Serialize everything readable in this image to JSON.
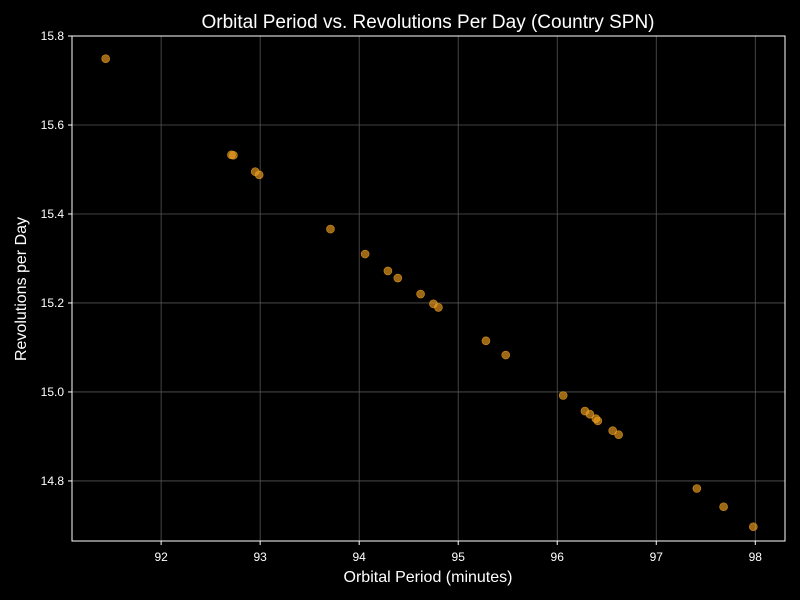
{
  "chart_data": {
    "type": "scatter",
    "title": "Orbital Period vs. Revolutions Per Day (Country SPN)",
    "xlabel": "Orbital Period (minutes)",
    "ylabel": "Revolutions per Day",
    "xlim": [
      91.1,
      98.3
    ],
    "ylim": [
      14.665,
      15.8
    ],
    "xticks": [
      92,
      93,
      94,
      95,
      96,
      97,
      98
    ],
    "yticks": [
      14.8,
      15.0,
      15.2,
      15.4,
      15.6,
      15.8
    ],
    "grid": true,
    "legend": "none",
    "point_color": "#f0a020",
    "points": [
      {
        "x": 91.44,
        "y": 15.749
      },
      {
        "x": 92.71,
        "y": 15.533
      },
      {
        "x": 92.73,
        "y": 15.532
      },
      {
        "x": 92.95,
        "y": 15.495
      },
      {
        "x": 92.99,
        "y": 15.488
      },
      {
        "x": 93.71,
        "y": 15.366
      },
      {
        "x": 94.06,
        "y": 15.31
      },
      {
        "x": 94.29,
        "y": 15.272
      },
      {
        "x": 94.39,
        "y": 15.256
      },
      {
        "x": 94.62,
        "y": 15.22
      },
      {
        "x": 94.75,
        "y": 15.198
      },
      {
        "x": 94.8,
        "y": 15.19
      },
      {
        "x": 95.28,
        "y": 15.115
      },
      {
        "x": 95.48,
        "y": 15.083
      },
      {
        "x": 96.06,
        "y": 14.992
      },
      {
        "x": 96.28,
        "y": 14.957
      },
      {
        "x": 96.33,
        "y": 14.95
      },
      {
        "x": 96.39,
        "y": 14.94
      },
      {
        "x": 96.41,
        "y": 14.935
      },
      {
        "x": 96.56,
        "y": 14.913
      },
      {
        "x": 96.62,
        "y": 14.904
      },
      {
        "x": 97.41,
        "y": 14.783
      },
      {
        "x": 97.68,
        "y": 14.742
      },
      {
        "x": 97.98,
        "y": 14.697
      }
    ]
  }
}
